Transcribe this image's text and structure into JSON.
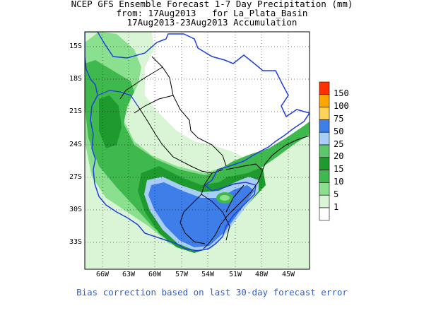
{
  "title": {
    "line1": "NCEP GFS Ensemble Forecast 1-7 Day Precipitation (mm)",
    "line2": "from: 17Aug2013   for La_Plata_Basin",
    "line3": "17Aug2013-23Aug2013 Accumulation"
  },
  "latitude_labels": [
    "15S",
    "18S",
    "21S",
    "24S",
    "27S",
    "30S",
    "33S"
  ],
  "longitude_labels": [
    "66W",
    "63W",
    "60W",
    "57W",
    "54W",
    "51W",
    "48W",
    "45W"
  ],
  "legend": {
    "labels": [
      "150",
      "100",
      "75",
      "50",
      "25",
      "20",
      "15",
      "10",
      "5",
      "1"
    ],
    "colors": [
      "#ff3000",
      "#ffa500",
      "#ffd35a",
      "#3d7ee8",
      "#a9cef6",
      "#5dc86b",
      "#1f9a2e",
      "#3fb84d",
      "#8be08f",
      "#d9f5d5",
      "#ffffff"
    ]
  },
  "note": "Bias correction based on last 30-day forecast error"
}
